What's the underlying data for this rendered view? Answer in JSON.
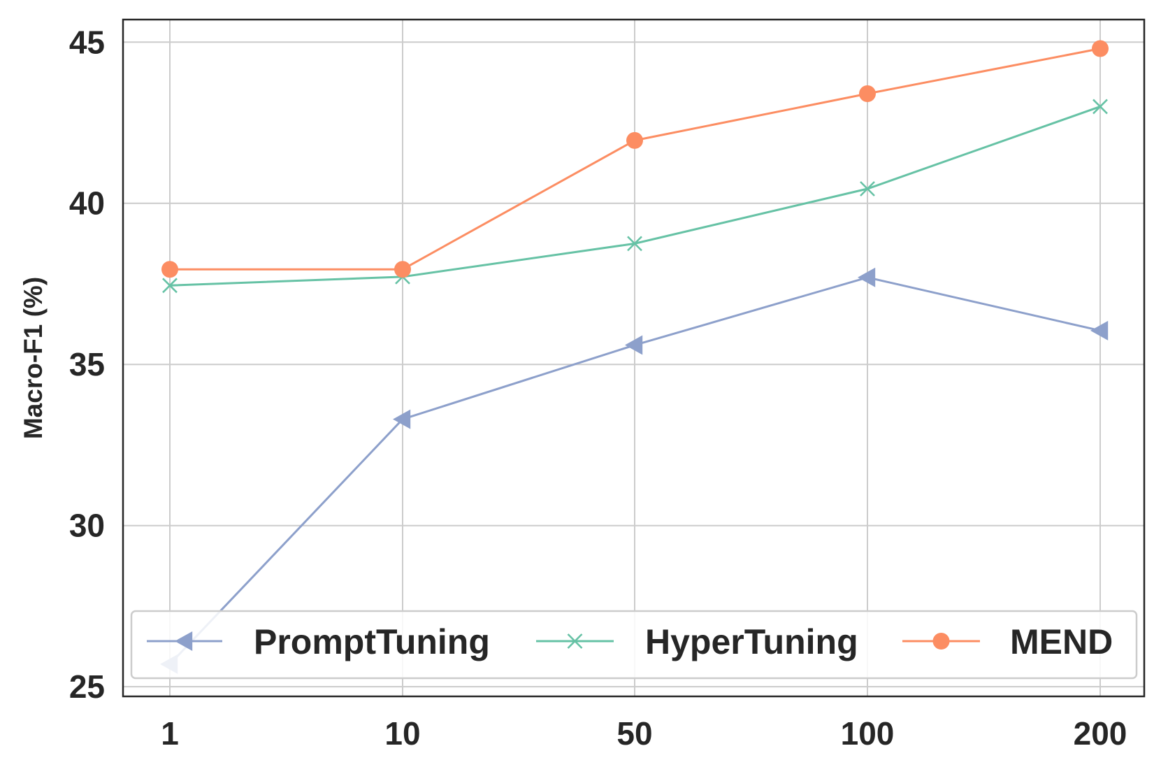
{
  "chart_data": {
    "type": "line",
    "categories": [
      "1",
      "10",
      "50",
      "100",
      "200"
    ],
    "series": [
      {
        "name": "PromptTuning",
        "values": [
          25.7,
          33.3,
          35.6,
          37.7,
          36.05
        ],
        "color": "#8da0cb",
        "marker": "triangle-left"
      },
      {
        "name": "HyperTuning",
        "values": [
          37.45,
          37.72,
          38.75,
          40.45,
          43.0
        ],
        "color": "#66c2a5",
        "marker": "x"
      },
      {
        "name": "MEND",
        "values": [
          37.95,
          37.95,
          41.95,
          43.4,
          44.8
        ],
        "color": "#fc8d62",
        "marker": "circle"
      }
    ],
    "title": "",
    "xlabel": "",
    "ylabel": "Macro-F1 (%)",
    "ylim": [
      24.7,
      45.7
    ],
    "yticks": [
      25,
      30,
      35,
      40,
      45
    ],
    "grid": true,
    "legend_position": "lower-center"
  }
}
